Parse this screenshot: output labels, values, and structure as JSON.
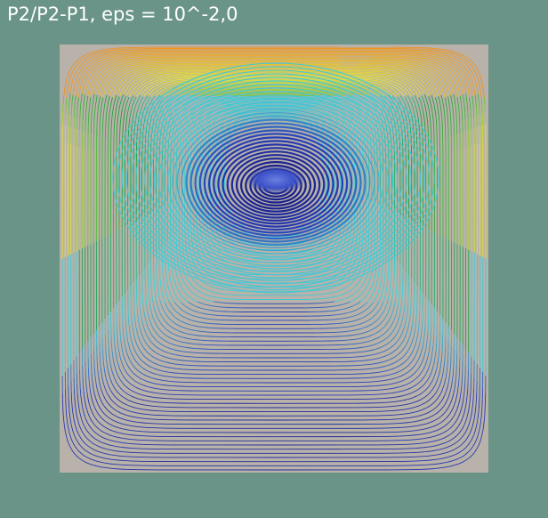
{
  "window": {
    "title": "P2/P2-P1, eps = 10^-2,0",
    "background_color": "#6a9487"
  },
  "plot": {
    "kind": "streamline contour plot (lid-driven cavity flow)",
    "background_color": "#b8b2aa",
    "colormap": [
      "#1a1f8a",
      "#2a3fb8",
      "#3fc7d6",
      "#33d6e0",
      "#1f9a3a",
      "#3fb83a",
      "#e8e82a",
      "#f0a020",
      "#f05a10"
    ]
  }
}
